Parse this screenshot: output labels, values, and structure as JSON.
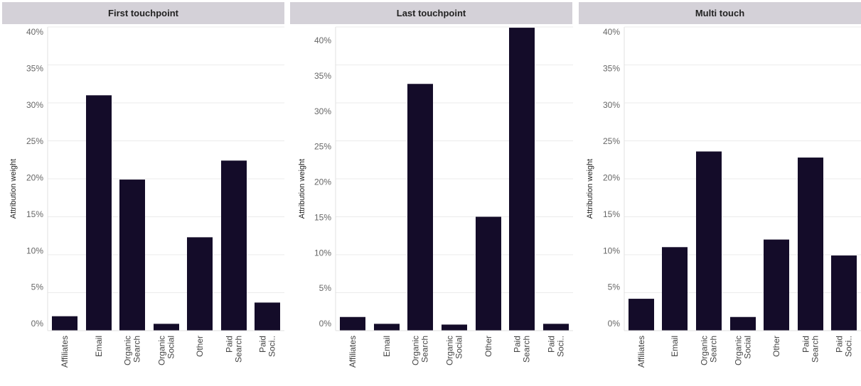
{
  "colors": {
    "bar": "#140c29",
    "header_bg": "#d4d1d8",
    "grid": "#ebebeb"
  },
  "chart_data": [
    {
      "type": "bar",
      "title": "First touchpoint",
      "ylabel": "Attribution weight",
      "ylim": [
        0,
        0.4
      ],
      "yticks": [
        "0%",
        "5%",
        "10%",
        "15%",
        "20%",
        "25%",
        "30%",
        "35%",
        "40%"
      ],
      "categories": [
        "Affiliates",
        "Email",
        "Organic Search",
        "Organic Social",
        "Other",
        "Paid Search",
        "Paid Soci.."
      ],
      "values": [
        0.019,
        0.31,
        0.199,
        0.009,
        0.123,
        0.224,
        0.037
      ]
    },
    {
      "type": "bar",
      "title": "Last touchpoint",
      "ylabel": "Attribution weight",
      "ylim": [
        0,
        0.4
      ],
      "yticks": [
        "0%",
        "5%",
        "10%",
        "15%",
        "20%",
        "25%",
        "30%",
        "35%",
        "40%"
      ],
      "categories": [
        "Affiliates",
        "Email",
        "Organic Search",
        "Organic Social",
        "Other",
        "Paid Search",
        "Paid Soci.."
      ],
      "values": [
        0.018,
        0.009,
        0.325,
        0.008,
        0.15,
        0.399,
        0.009
      ]
    },
    {
      "type": "bar",
      "title": "Multi touch",
      "ylabel": "Attribution weight",
      "ylim": [
        0,
        0.4
      ],
      "yticks": [
        "0%",
        "5%",
        "10%",
        "15%",
        "20%",
        "25%",
        "30%",
        "35%",
        "40%"
      ],
      "categories": [
        "Affiliates",
        "Email",
        "Organic Search",
        "Organic Social",
        "Other",
        "Paid Search",
        "Paid Soci.."
      ],
      "values": [
        0.042,
        0.11,
        0.236,
        0.018,
        0.12,
        0.228,
        0.099
      ]
    }
  ]
}
